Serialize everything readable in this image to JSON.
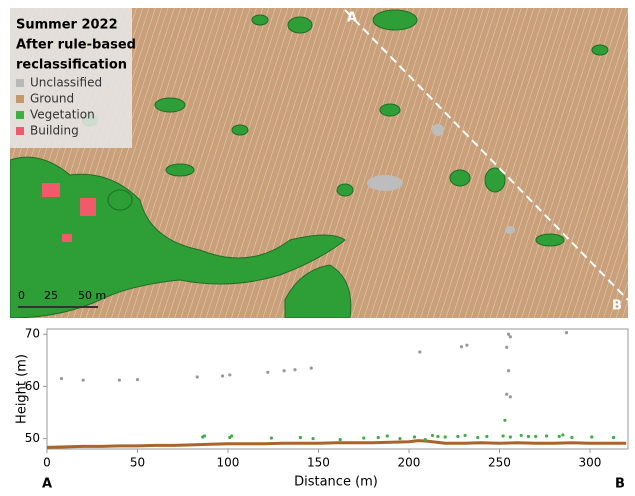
{
  "map": {
    "title": [
      "Summer 2022",
      "After rule-based",
      "reclassification"
    ],
    "legend": [
      {
        "name": "Unclassified",
        "color": "#b9b9b9"
      },
      {
        "name": "Ground",
        "color": "#c49a6c"
      },
      {
        "name": "Vegetation",
        "color": "#3cb043"
      },
      {
        "name": "Building",
        "color": "#f05a6a"
      }
    ],
    "scale_labels": [
      "0",
      "25",
      "50 m"
    ],
    "profile_start": "A",
    "profile_end": "B"
  },
  "chart_data": {
    "type": "scatter",
    "xlabel": "Distance (m)",
    "ylabel": "Height (m)",
    "end_labels": [
      "A",
      "B"
    ],
    "xlim": [
      0,
      321
    ],
    "ylim": [
      48,
      71
    ],
    "xticks": [
      0,
      50,
      100,
      150,
      200,
      250,
      300
    ],
    "yticks": [
      50,
      60,
      70
    ],
    "grid": false,
    "series": [
      {
        "type": "line",
        "color": "#a8642a",
        "x": [
          0,
          10,
          20,
          30,
          40,
          50,
          60,
          70,
          80,
          90,
          100,
          110,
          120,
          130,
          140,
          150,
          160,
          170,
          180,
          190,
          200,
          205,
          210,
          220,
          230,
          240,
          250,
          260,
          270,
          280,
          290,
          300,
          310,
          320
        ],
        "values": [
          48.3,
          48.4,
          48.5,
          48.5,
          48.6,
          48.6,
          48.7,
          48.7,
          48.8,
          48.9,
          49.0,
          49.0,
          49.0,
          49.1,
          49.1,
          49.1,
          49.2,
          49.2,
          49.2,
          49.3,
          49.4,
          49.6,
          49.5,
          49.1,
          49.1,
          49.2,
          49.1,
          49.2,
          49.1,
          49.1,
          49.2,
          49.1,
          49.1,
          49.1
        ]
      },
      {
        "type": "scatter",
        "color": "#999999",
        "x": [
          8,
          20,
          40,
          50,
          83,
          97,
          101,
          122,
          131,
          137,
          146,
          206,
          229,
          232,
          254,
          255,
          256,
          255,
          254,
          256,
          287
        ],
        "values": [
          61.5,
          61.2,
          61.2,
          61.3,
          61.8,
          62.0,
          62.2,
          62.7,
          63.0,
          63.2,
          63.5,
          66.6,
          67.6,
          67.9,
          67.5,
          70.0,
          69.5,
          63.0,
          58.5,
          58.0,
          70.3
        ]
      },
      {
        "type": "scatter",
        "color": "#3cb043",
        "x": [
          86,
          87,
          101,
          102,
          124,
          140,
          147,
          162,
          175,
          183,
          188,
          195,
          203,
          209,
          213,
          216,
          220,
          227,
          231,
          238,
          243,
          252,
          253,
          256,
          262,
          266,
          270,
          276,
          283,
          285,
          290,
          301,
          313
        ],
        "values": [
          50.3,
          50.5,
          50.2,
          50.5,
          50.1,
          50.2,
          50.0,
          49.8,
          50.1,
          50.2,
          50.5,
          50.0,
          50.3,
          49.8,
          50.6,
          50.4,
          50.3,
          50.4,
          50.6,
          50.2,
          50.4,
          50.5,
          53.5,
          50.3,
          50.6,
          50.4,
          50.4,
          50.5,
          50.4,
          50.7,
          50.2,
          50.3,
          50.2
        ]
      }
    ]
  }
}
